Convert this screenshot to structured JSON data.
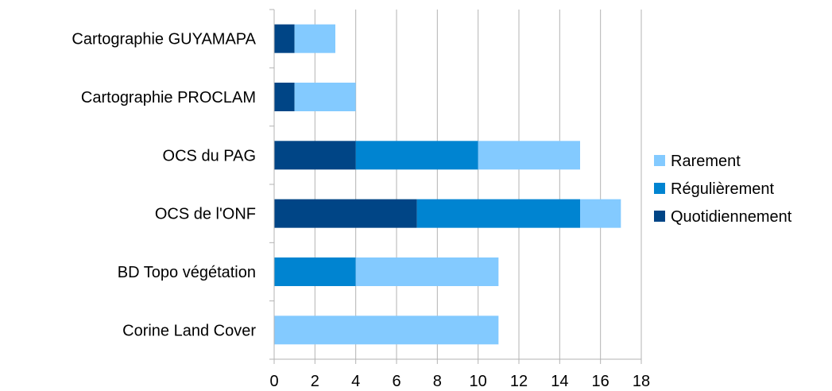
{
  "chart_data": {
    "type": "bar",
    "orientation": "horizontal",
    "stacked": true,
    "categories": [
      "Cartographie GUYAMAPA",
      "Cartographie PROCLAM",
      "OCS du PAG",
      "OCS de l'ONF",
      "BD Topo végétation",
      "Corine Land Cover"
    ],
    "series": [
      {
        "name": "Quotidiennement",
        "color": "#004586",
        "values": [
          1,
          1,
          4,
          7,
          0,
          0
        ]
      },
      {
        "name": "Régulièrement",
        "color": "#0084d1",
        "values": [
          0,
          0,
          6,
          8,
          4,
          0
        ]
      },
      {
        "name": "Rarement",
        "color": "#83caff",
        "values": [
          2,
          3,
          5,
          2,
          7,
          11
        ]
      }
    ],
    "xlim": [
      0,
      18
    ],
    "xticks": [
      0,
      2,
      4,
      6,
      8,
      10,
      12,
      14,
      16,
      18
    ],
    "grid": true,
    "legend_position": "right",
    "legend_order": [
      "Rarement",
      "Régulièrement",
      "Quotidiennement"
    ],
    "title": "",
    "xlabel": "",
    "ylabel": ""
  }
}
